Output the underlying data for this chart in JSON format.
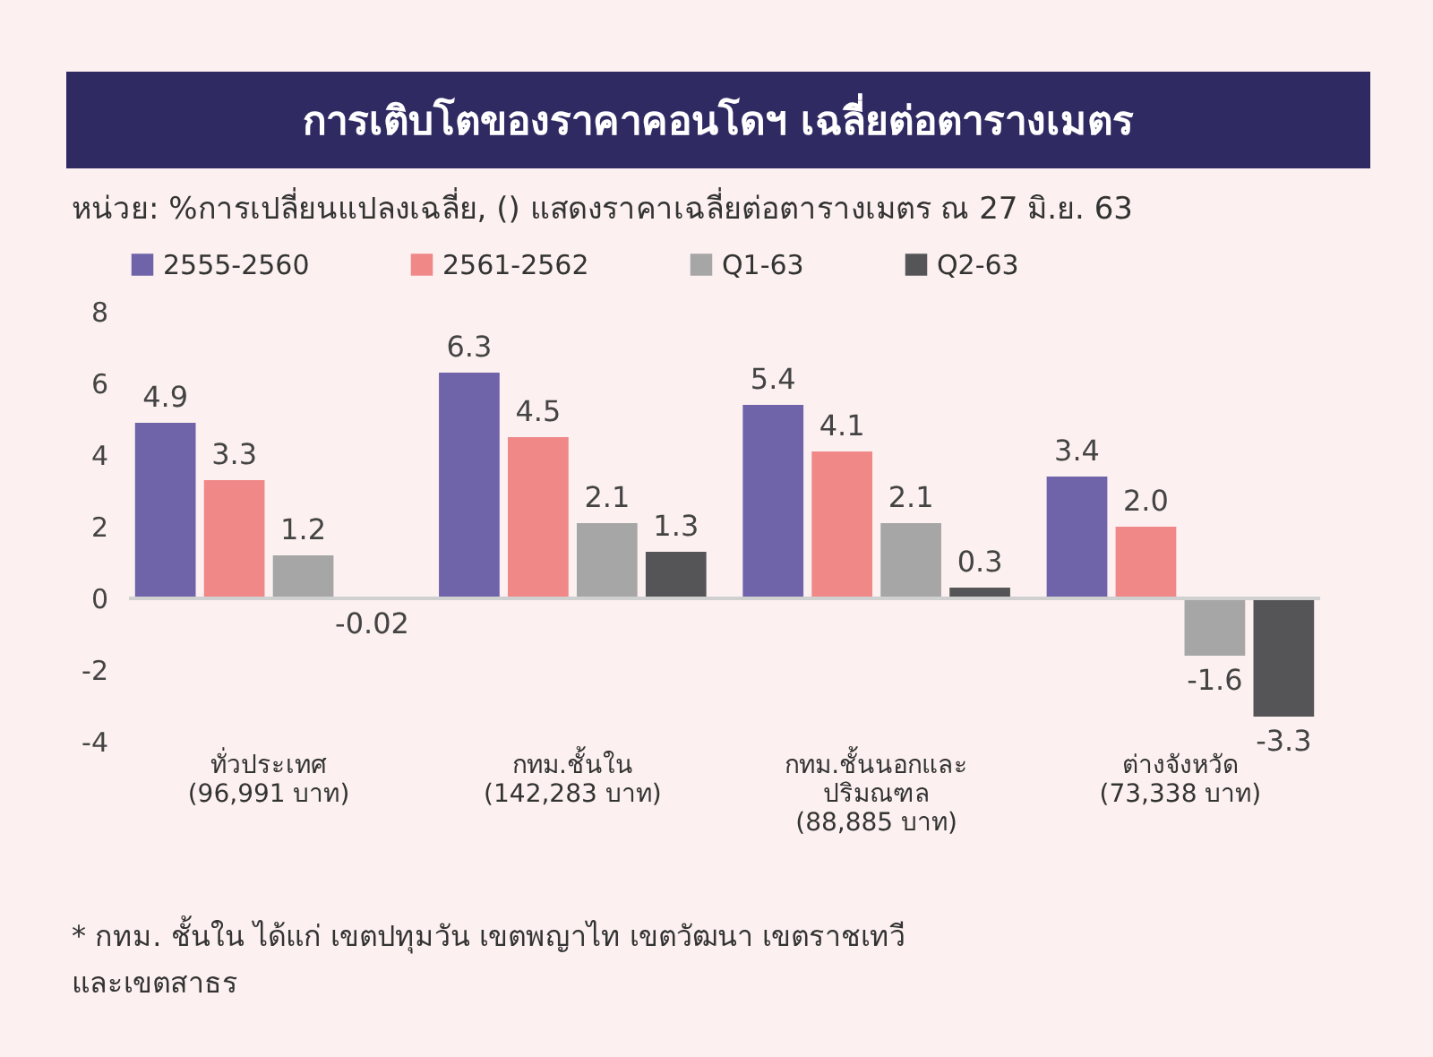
{
  "chart_data": {
    "type": "bar",
    "title": "การเติบโตของราคาคอนโดฯ เฉลี่ยต่อตารางเมตร",
    "subtitle": "หน่วย: %การเปลี่ยนแปลงเฉลี่ย, () แสดงราคาเฉลี่ยต่อตารางเมตร ณ 27 มิ.ย. 63",
    "categories": [
      "ทั่วประเทศ\n(96,991 บาท)",
      "กทม.ชั้นใน\n(142,283 บาท)",
      "กทม.ชั้นนอกและ\nปริมณฑล\n(88,885 บาท)",
      "ต่างจังหวัด\n(73,338 บาท)"
    ],
    "series": [
      {
        "name": "2555-2560",
        "color": "#6f63aa",
        "values": [
          4.9,
          6.3,
          5.4,
          3.4
        ],
        "value_labels": [
          "4.9",
          "6.3",
          "5.4",
          "3.4"
        ]
      },
      {
        "name": "2561-2562",
        "color": "#f08888",
        "values": [
          3.3,
          4.5,
          4.1,
          2.0
        ],
        "value_labels": [
          "3.3",
          "4.5",
          "4.1",
          "2.0"
        ]
      },
      {
        "name": "Q1-63",
        "color": "#a6a6a6",
        "values": [
          1.2,
          2.1,
          2.1,
          -1.6
        ],
        "value_labels": [
          "1.2",
          "2.1",
          "2.1",
          "-1.6"
        ]
      },
      {
        "name": "Q2-63",
        "color": "#555557",
        "values": [
          -0.02,
          1.3,
          0.3,
          -3.3
        ],
        "value_labels": [
          "-0.02",
          "1.3",
          "0.3",
          "-3.3"
        ]
      }
    ],
    "ylim": [
      -4,
      8
    ],
    "yticks": [
      -4,
      -2,
      0,
      2,
      4,
      6,
      8
    ],
    "grid": false,
    "legend": "top",
    "ref_lines": [
      {
        "axis": "y",
        "value": 0,
        "color": "#d0d0d0"
      }
    ],
    "annotations": [
      "* กทม. ชั้นใน ได้แก่ เขตปทุมวัน เขตพญาไท เขตวัฒนา เขตราชเทวี\nและเขตสาธร"
    ]
  }
}
